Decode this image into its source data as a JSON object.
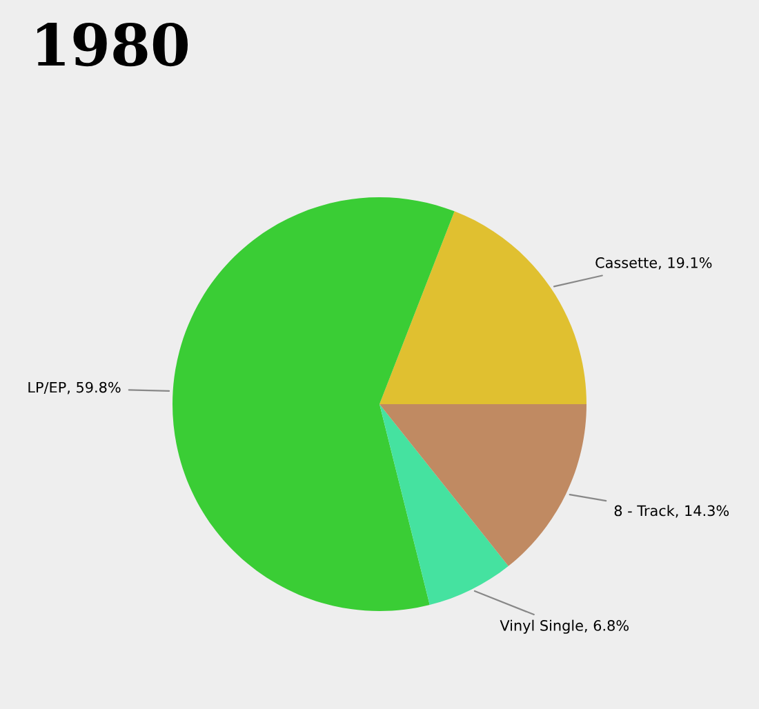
{
  "chart_data": {
    "type": "pie",
    "title": "1980",
    "categories": [
      "Cassette",
      "LP/EP",
      "Vinyl Single",
      "8 - Track"
    ],
    "values": [
      19.1,
      59.8,
      6.8,
      14.3
    ],
    "value_labels": [
      "19.1%",
      "59.8%",
      "6.8%",
      "14.3%"
    ],
    "colors": [
      "#e0c030",
      "#3acd35",
      "#45e2a0",
      "#c08a62"
    ],
    "legend": false
  }
}
